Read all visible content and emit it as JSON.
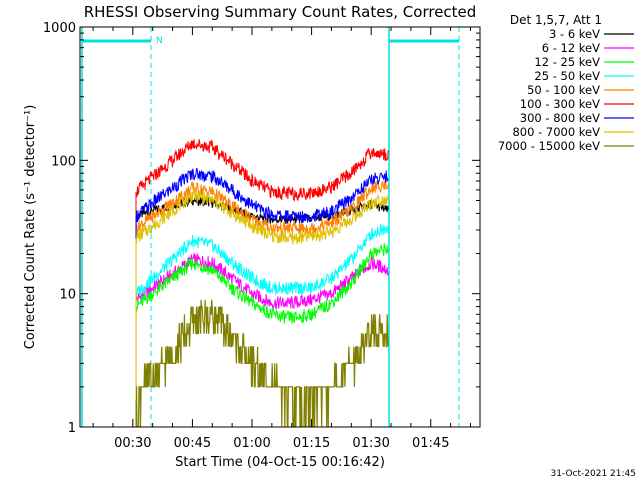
{
  "chart_data": {
    "type": "line",
    "title": "RHESSI Observing Summary Count Rates, Corrected",
    "xlabel": "Start Time (04-Oct-15 00:16:42)",
    "ylabel": "Corrected Count Rate (s⁻¹ detector⁻¹)",
    "ylog": true,
    "ylim": [
      1,
      1000
    ],
    "xlim_minutes_after_midnight": [
      16.7,
      117.4
    ],
    "x_ticks": [
      "00:30",
      "00:45",
      "01:00",
      "01:15",
      "01:30",
      "01:45"
    ],
    "y_ticks": [
      "1",
      "10",
      "100",
      "1000"
    ],
    "legend_header": "Det 1,5,7, Att 1",
    "legend_position": "right",
    "timestamp": "31-Oct-2021 21:45",
    "night_label": "N",
    "data_start": 30.8,
    "data_end": 94.3,
    "series": [
      {
        "name": "3 - 6 keV",
        "color": "#000000",
        "x": [
          30.8,
          35,
          40,
          45,
          50,
          55,
          60,
          65,
          70,
          75,
          80,
          85,
          90,
          94.3
        ],
        "y": [
          38,
          42,
          46,
          50,
          48,
          43,
          38,
          36,
          36,
          37,
          38,
          42,
          47,
          42
        ]
      },
      {
        "name": "6 - 12 keV",
        "color": "#ff00ff",
        "x": [
          30.8,
          35,
          40,
          45,
          50,
          55,
          60,
          65,
          70,
          75,
          80,
          85,
          90,
          94.3
        ],
        "y": [
          9,
          11,
          14,
          18,
          17,
          13,
          10,
          8.5,
          8.5,
          9,
          10,
          13,
          17,
          15
        ]
      },
      {
        "name": "12 - 25 keV",
        "color": "#00ff00",
        "x": [
          30.8,
          35,
          40,
          45,
          50,
          55,
          60,
          65,
          70,
          75,
          80,
          85,
          90,
          94.3
        ],
        "y": [
          8,
          10,
          13,
          17,
          15,
          11,
          8.5,
          7,
          6.5,
          7,
          8.5,
          12,
          20,
          22
        ]
      },
      {
        "name": "25 - 50 keV",
        "color": "#00ffff",
        "x": [
          30.8,
          35,
          40,
          45,
          50,
          55,
          60,
          65,
          70,
          75,
          80,
          85,
          90,
          94.3
        ],
        "y": [
          10,
          13,
          18,
          25,
          23,
          17,
          13,
          11,
          11,
          11,
          13,
          18,
          28,
          32
        ]
      },
      {
        "name": "50 - 100 keV",
        "color": "#ff8000",
        "x": [
          30.8,
          35,
          40,
          45,
          50,
          55,
          60,
          65,
          70,
          75,
          80,
          85,
          90,
          94.3
        ],
        "y": [
          31,
          38,
          48,
          62,
          58,
          45,
          36,
          31,
          31,
          31,
          34,
          43,
          62,
          66
        ]
      },
      {
        "name": "100 - 300 keV",
        "color": "#ff0000",
        "x": [
          30.8,
          35,
          40,
          45,
          50,
          55,
          60,
          65,
          70,
          75,
          80,
          85,
          90,
          94.3
        ],
        "y": [
          58,
          75,
          100,
          135,
          125,
          95,
          70,
          58,
          56,
          57,
          63,
          80,
          115,
          110
        ]
      },
      {
        "name": "300 - 800 keV",
        "color": "#0000ff",
        "x": [
          30.8,
          35,
          40,
          45,
          50,
          55,
          60,
          65,
          70,
          75,
          80,
          85,
          90,
          94.3
        ],
        "y": [
          38,
          48,
          62,
          80,
          76,
          60,
          46,
          39,
          38,
          38,
          41,
          52,
          72,
          76
        ]
      },
      {
        "name": "800 - 7000 keV",
        "color": "#e0c000",
        "x": [
          30.8,
          35,
          40,
          45,
          50,
          55,
          60,
          65,
          70,
          75,
          80,
          85,
          90,
          94.3
        ],
        "y": [
          26,
          32,
          42,
          55,
          50,
          40,
          32,
          27,
          26,
          27,
          29,
          36,
          48,
          52
        ]
      },
      {
        "name": "7000 - 15000 keV",
        "color": "#808000",
        "x": [
          30.8,
          35,
          40,
          45,
          50,
          55,
          60,
          65,
          70,
          75,
          80,
          85,
          90,
          94.3
        ],
        "y": [
          1.6,
          2.2,
          3.5,
          6,
          7,
          4.5,
          3,
          2,
          1.5,
          1.5,
          1.8,
          3,
          5,
          5.5
        ]
      }
    ]
  }
}
